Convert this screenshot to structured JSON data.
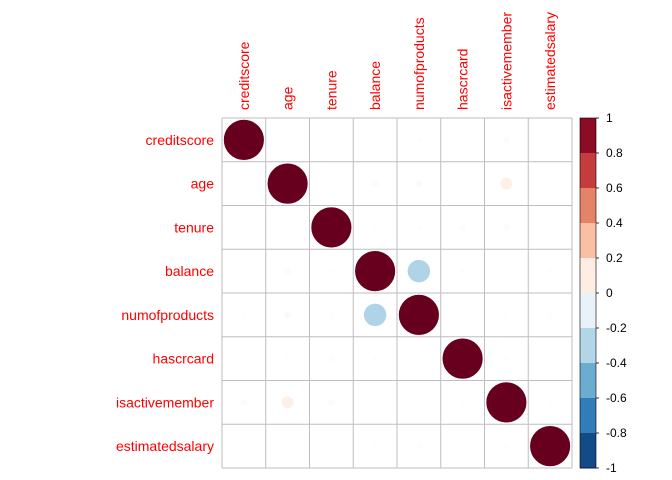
{
  "chart_data": {
    "type": "heatmap",
    "variables": [
      "creditscore",
      "age",
      "tenure",
      "balance",
      "numofproducts",
      "hascrcard",
      "isactivemember",
      "estimatedsalary"
    ],
    "matrix": [
      [
        1.0,
        -0.004,
        0.001,
        0.006,
        0.012,
        -0.005,
        0.026,
        -0.001
      ],
      [
        -0.004,
        1.0,
        -0.01,
        0.028,
        -0.031,
        -0.012,
        0.085,
        -0.007
      ],
      [
        0.001,
        -0.01,
        1.0,
        -0.012,
        0.013,
        0.023,
        -0.028,
        0.008
      ],
      [
        0.006,
        0.028,
        -0.012,
        1.0,
        -0.304,
        -0.015,
        -0.01,
        0.013
      ],
      [
        0.012,
        -0.031,
        0.013,
        -0.304,
        1.0,
        0.003,
        0.01,
        0.014
      ],
      [
        -0.005,
        -0.012,
        0.023,
        -0.015,
        0.003,
        1.0,
        -0.012,
        -0.01
      ],
      [
        0.026,
        0.085,
        -0.028,
        -0.01,
        0.01,
        -0.012,
        1.0,
        -0.011
      ],
      [
        -0.001,
        -0.007,
        0.008,
        0.013,
        0.014,
        -0.01,
        -0.011,
        1.0
      ]
    ],
    "colorbar": {
      "range": [
        -1,
        1
      ],
      "ticks": [
        "1",
        "0.8",
        "0.6",
        "0.4",
        "0.2",
        "0",
        "-0.2",
        "-0.4",
        "-0.6",
        "-0.8",
        "-1"
      ],
      "colors": [
        "#67001F",
        "#B2182B",
        "#D6604D",
        "#F4A582",
        "#FDDBC7",
        "#FFFFFF",
        "#D1E5F0",
        "#92C5DE",
        "#4393C3",
        "#2166AC",
        "#053061"
      ]
    },
    "label_color": "#FF0000",
    "grid": true
  }
}
